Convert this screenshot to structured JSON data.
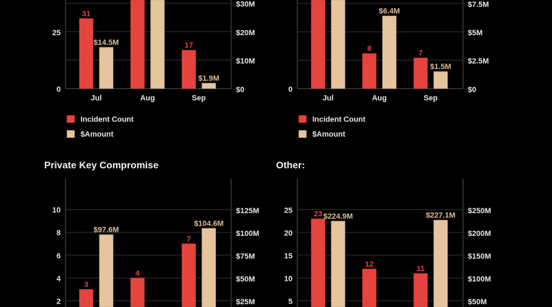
{
  "colors": {
    "background": "#000000",
    "incident_bar": "#E5443D",
    "incident_bar_edge": "#B9352F",
    "incident_label": "#E2433B",
    "amount_bar": "#E6C59E",
    "amount_bar_edge": "#B89A76",
    "amount_label": "#DDBD93",
    "gridline": "#2C2C2C",
    "axis": "#3C3C3C"
  },
  "chart_data": [
    {
      "type": "bar",
      "categories": [
        "Jul",
        "Aug",
        "Sep"
      ],
      "grid": true,
      "left_axis": {
        "ylim": [
          0,
          39.2
        ],
        "ticks": [
          0,
          25
        ],
        "tick_labels": [
          "0",
          "25"
        ]
      },
      "right_axis": {
        "ylim": [
          0,
          31.1
        ],
        "ticks": [
          0,
          10,
          20,
          30
        ],
        "tick_labels": [
          "$0",
          "$10M",
          "$20M",
          "$30M"
        ]
      },
      "series": [
        {
          "name": "Incident Count",
          "y_axis": "left",
          "values": [
            31,
            null,
            17
          ],
          "data_labels": [
            "31",
            null,
            "17"
          ],
          "clipped": [
            false,
            true,
            false
          ]
        },
        {
          "name": "$Amount",
          "y_axis": "right",
          "values": [
            14.5,
            null,
            1.9
          ],
          "data_labels": [
            "$14.5M",
            null,
            "$1.9M"
          ],
          "clipped": [
            false,
            true,
            false
          ]
        }
      ],
      "legend": {
        "position": "bottom-left"
      }
    },
    {
      "type": "bar",
      "categories": [
        "Jul",
        "Aug",
        "Sep"
      ],
      "grid": true,
      "left_axis": {
        "ylim": [
          0,
          20.2
        ],
        "ticks": [
          0
        ],
        "tick_labels": [
          "0"
        ]
      },
      "right_axis": {
        "ylim": [
          0,
          7.8
        ],
        "ticks": [
          0,
          2.5,
          5,
          7.5
        ],
        "tick_labels": [
          "$0",
          "$2.5M",
          "$5M",
          "$7.5M"
        ]
      },
      "series": [
        {
          "name": "Incident Count",
          "y_axis": "left",
          "values": [
            null,
            8,
            7
          ],
          "data_labels": [
            null,
            "8",
            "7"
          ],
          "clipped": [
            true,
            false,
            false
          ]
        },
        {
          "name": "$Amount",
          "y_axis": "right",
          "values": [
            null,
            6.4,
            1.5
          ],
          "data_labels": [
            null,
            "$6.4M",
            "$1.5M"
          ],
          "clipped": [
            true,
            false,
            false
          ]
        }
      ],
      "legend": {
        "position": "bottom-left"
      }
    },
    {
      "type": "bar",
      "title": "Private Key Compromise",
      "grid": true,
      "left_axis": {
        "ylim": [
          0,
          12.7
        ],
        "ticks": [
          2,
          4,
          6,
          8,
          10
        ],
        "tick_labels": [
          "2",
          "4",
          "6",
          "8",
          "10"
        ]
      },
      "right_axis": {
        "ylim": [
          0,
          159
        ],
        "ticks": [
          25,
          50,
          75,
          100,
          125
        ],
        "tick_labels": [
          "$25M",
          "$50M",
          "$75M",
          "$100M",
          "$125M"
        ]
      },
      "series": [
        {
          "y_axis": "left",
          "values": [
            3,
            4,
            7
          ],
          "data_labels": [
            "3",
            "4",
            "7"
          ]
        },
        {
          "y_axis": "right",
          "values": [
            97.6,
            null,
            104.6
          ],
          "data_labels": [
            "$97.6M",
            null,
            "$104.6M"
          ]
        }
      ]
    },
    {
      "type": "bar",
      "title": "Other:",
      "grid": true,
      "left_axis": {
        "ylim": [
          0,
          31.8
        ],
        "ticks": [
          5,
          10,
          15,
          20,
          25
        ],
        "tick_labels": [
          "5",
          "10",
          "15",
          "20",
          "25"
        ]
      },
      "right_axis": {
        "ylim": [
          0,
          318
        ],
        "ticks": [
          50,
          100,
          150,
          200,
          250
        ],
        "tick_labels": [
          "$50M",
          "$100M",
          "$150M",
          "$200M",
          "$250M"
        ]
      },
      "series": [
        {
          "y_axis": "left",
          "values": [
            23,
            12,
            11
          ],
          "data_labels": [
            "23",
            "12",
            "11"
          ]
        },
        {
          "y_axis": "right",
          "values": [
            224.9,
            null,
            227.1
          ],
          "data_labels": [
            "$224.9M",
            null,
            "$227.1M"
          ]
        }
      ]
    }
  ]
}
